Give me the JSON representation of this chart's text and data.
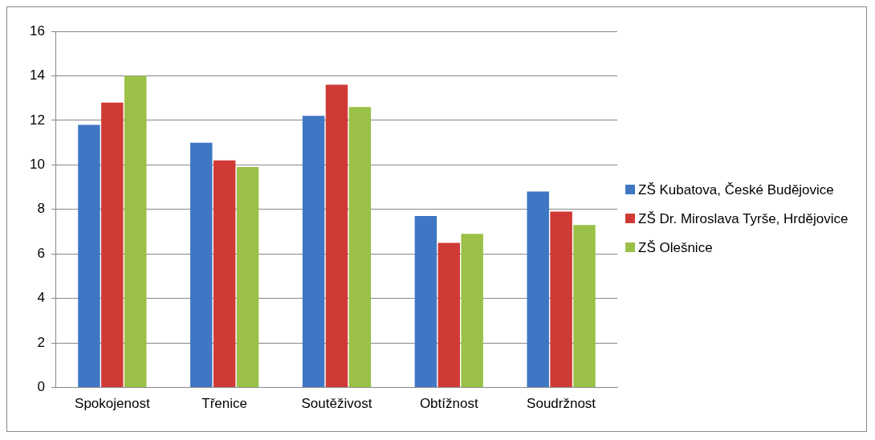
{
  "chart_data": {
    "type": "bar",
    "categories": [
      "Spokojenost",
      "Třenice",
      "Soutěživost",
      "Obtížnost",
      "Soudržnost"
    ],
    "series": [
      {
        "name": "ZŠ Kubatova, České Budějovice",
        "color": "#3f77c4",
        "values": [
          11.8,
          11.0,
          12.2,
          7.7,
          8.8
        ]
      },
      {
        "name": "ZŠ Dr. Miroslava Tyrše, Hrdějovice",
        "color": "#d03a35",
        "values": [
          12.8,
          10.2,
          13.6,
          6.5,
          7.9
        ]
      },
      {
        "name": "ZŠ Olešnice",
        "color": "#9bc047",
        "values": [
          14.0,
          9.9,
          12.6,
          6.9,
          7.3
        ]
      }
    ],
    "ylim": [
      0,
      16
    ],
    "yticks": [
      0,
      2,
      4,
      6,
      8,
      10,
      12,
      14,
      16
    ],
    "grid": "y",
    "legend": "right"
  }
}
